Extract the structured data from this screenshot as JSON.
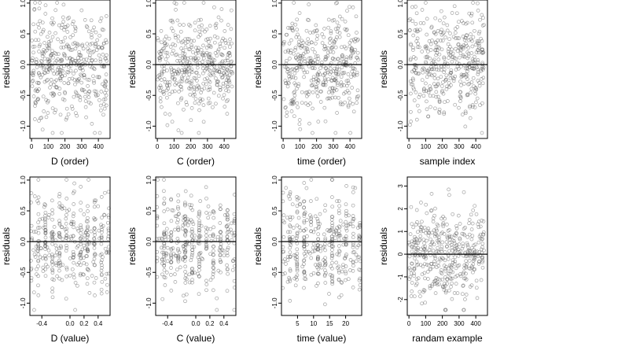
{
  "chart_data": [
    {
      "type": "scatter",
      "xlabel": "D (order)",
      "ylabel": "residuals",
      "xlim": [
        -10,
        470
      ],
      "ylim": [
        -1.2,
        1.05
      ],
      "xticks": [
        0,
        100,
        200,
        300,
        400
      ],
      "xtick_labels": [
        "0",
        "100",
        "200",
        "300",
        "400"
      ],
      "yticks": [
        -1.0,
        -0.5,
        0.0,
        0.5,
        1.0
      ],
      "ytick_labels": [
        "-1.0",
        "-0.5",
        "0.0",
        "0.5",
        "1.0"
      ],
      "hline": 0,
      "points": {
        "x_min": 0,
        "x_max": 450,
        "y_spread": 0.42,
        "n": 420
      }
    },
    {
      "type": "scatter",
      "xlabel": "C (order)",
      "ylabel": "residuals",
      "xlim": [
        -10,
        470
      ],
      "ylim": [
        -1.2,
        1.05
      ],
      "xticks": [
        0,
        100,
        200,
        300,
        400
      ],
      "xtick_labels": [
        "0",
        "100",
        "200",
        "300",
        "400"
      ],
      "yticks": [
        -1.0,
        -0.5,
        0.0,
        0.5,
        1.0
      ],
      "ytick_labels": [
        "-1.0",
        "-0.5",
        "0.0",
        "0.5",
        "1.0"
      ],
      "hline": 0,
      "points": {
        "x_min": 0,
        "x_max": 450,
        "y_spread": 0.42,
        "n": 420
      }
    },
    {
      "type": "scatter",
      "xlabel": "time (order)",
      "ylabel": "residuals",
      "xlim": [
        -10,
        470
      ],
      "ylim": [
        -1.2,
        1.05
      ],
      "xticks": [
        0,
        100,
        200,
        300,
        400
      ],
      "xtick_labels": [
        "0",
        "100",
        "200",
        "300",
        "400"
      ],
      "yticks": [
        -1.0,
        -0.5,
        0.0,
        0.5,
        1.0
      ],
      "ytick_labels": [
        "-1.0",
        "-0.5",
        "0.0",
        "0.5",
        "1.0"
      ],
      "hline": 0,
      "points": {
        "x_min": 0,
        "x_max": 450,
        "y_spread": 0.42,
        "n": 420
      }
    },
    {
      "type": "scatter",
      "xlabel": "sample index",
      "ylabel": "residuals",
      "xlim": [
        -10,
        470
      ],
      "ylim": [
        -1.2,
        1.05
      ],
      "xticks": [
        0,
        100,
        200,
        300,
        400
      ],
      "xtick_labels": [
        "0",
        "100",
        "200",
        "300",
        "400"
      ],
      "yticks": [
        -1.0,
        -0.5,
        0.0,
        0.5,
        1.0
      ],
      "ytick_labels": [
        "-1.0",
        "-0.5",
        "0.0",
        "0.5",
        "1.0"
      ],
      "hline": 0,
      "points": {
        "x_min": 0,
        "x_max": 450,
        "y_spread": 0.42,
        "n": 420
      }
    },
    {
      "type": "scatter",
      "xlabel": "D (value)",
      "ylabel": "residuals",
      "xlim": [
        -0.57,
        0.57
      ],
      "ylim": [
        -1.2,
        1.05
      ],
      "xticks": [
        -0.4,
        0.0,
        0.2,
        0.4
      ],
      "xtick_labels": [
        "-0.4",
        "0.0",
        "0.2",
        "0.4"
      ],
      "yticks": [
        -1.0,
        -0.5,
        0.0,
        0.5,
        1.0
      ],
      "ytick_labels": [
        "-1.0",
        "-0.5",
        "0.0",
        "0.5",
        "1.0"
      ],
      "hline": 0,
      "points": {
        "x_min": -0.55,
        "x_max": 0.55,
        "y_spread": 0.42,
        "n": 380
      }
    },
    {
      "type": "scatter",
      "xlabel": "C (value)",
      "ylabel": "residuals",
      "xlim": [
        -0.57,
        0.57
      ],
      "ylim": [
        -1.2,
        1.05
      ],
      "xticks": [
        -0.4,
        0.0,
        0.2,
        0.4
      ],
      "xtick_labels": [
        "-0.4",
        "0.0",
        "0.2",
        "0.4"
      ],
      "yticks": [
        -1.0,
        -0.5,
        0.0,
        0.5,
        1.0
      ],
      "ytick_labels": [
        "-1.0",
        "-0.5",
        "0.0",
        "0.5",
        "1.0"
      ],
      "hline": 0,
      "points": {
        "x_min": -0.55,
        "x_max": 0.55,
        "y_spread": 0.42,
        "n": 380
      }
    },
    {
      "type": "scatter",
      "xlabel": "time (value)",
      "ylabel": "residuals",
      "xlim": [
        0,
        25
      ],
      "ylim": [
        -1.2,
        1.05
      ],
      "xticks": [
        5,
        10,
        15,
        20
      ],
      "xtick_labels": [
        "5",
        "10",
        "15",
        "20"
      ],
      "yticks": [
        -1.0,
        -0.5,
        0.0,
        0.5,
        1.0
      ],
      "ytick_labels": [
        "-1.0",
        "-0.5",
        "0.0",
        "0.5",
        "1.0"
      ],
      "hline": 0,
      "points": {
        "x_min": 0.5,
        "x_max": 24.5,
        "y_spread": 0.42,
        "n": 380
      }
    },
    {
      "type": "scatter",
      "xlabel": "randam example",
      "ylabel": "residuals",
      "xlim": [
        -10,
        470
      ],
      "ylim": [
        -2.7,
        3.4
      ],
      "xticks": [
        0,
        100,
        200,
        300,
        400
      ],
      "xtick_labels": [
        "0",
        "100",
        "200",
        "300",
        "400"
      ],
      "yticks": [
        -2,
        -1,
        0,
        1,
        2,
        3
      ],
      "ytick_labels": [
        "-2",
        "-1",
        "0",
        "1",
        "2",
        "3"
      ],
      "hline": 0,
      "points": {
        "x_min": 0,
        "x_max": 450,
        "y_spread": 0.95,
        "n": 420
      }
    }
  ]
}
